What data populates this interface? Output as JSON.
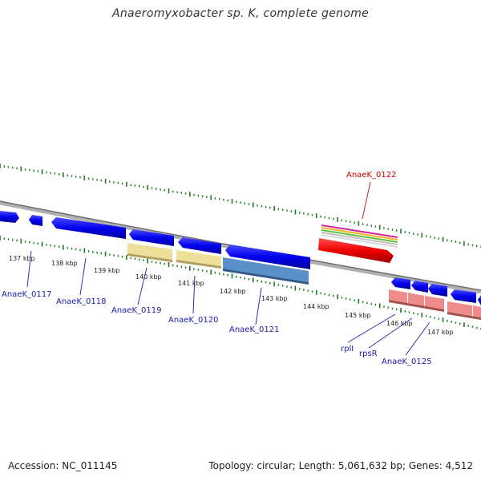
{
  "title": "Anaeromyxobacter sp. K, complete genome",
  "footer": {
    "accession": "Accession: NC_011145",
    "summary": "Topology: circular; Length: 5,061,632 bp; Genes: 4,512"
  },
  "colors": {
    "backbone": "#8a8a8a",
    "ticks": "#1e7a1e",
    "gene_forward": "#0000ee",
    "gene_highlight": "#ee0000",
    "label_blue": "#1a1aaa",
    "label_red": "#cc0000",
    "pale_yellow": "#eee09a",
    "steel_blue": "#4a7fb8",
    "salmon": "#e88a8a"
  },
  "scale_labels": [
    "137 kbp",
    "138 kbp",
    "139 kbp",
    "140 kbp",
    "141 kbp",
    "142 kbp",
    "143 kbp",
    "144 kbp",
    "145 kbp",
    "146 kbp",
    "147 kbp"
  ],
  "gene_labels": [
    {
      "text": "AnaeK_0117",
      "color": "blue"
    },
    {
      "text": "AnaeK_0118",
      "color": "blue"
    },
    {
      "text": "AnaeK_0119",
      "color": "blue"
    },
    {
      "text": "AnaeK_0120",
      "color": "blue"
    },
    {
      "text": "AnaeK_0121",
      "color": "blue"
    },
    {
      "text": "AnaeK_0122",
      "color": "red"
    },
    {
      "text": "rplI",
      "color": "blue"
    },
    {
      "text": "rpsR",
      "color": "blue"
    },
    {
      "text": "AnaeK_0125",
      "color": "blue"
    }
  ]
}
